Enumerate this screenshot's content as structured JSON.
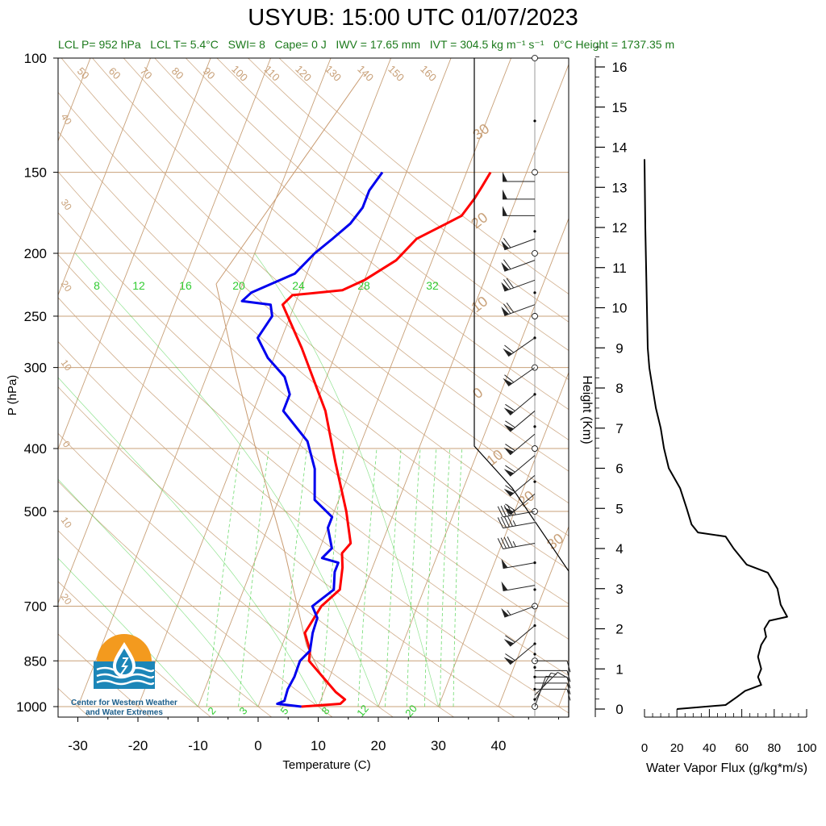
{
  "title": "USYUB: 15:00 UTC 01/07/2023",
  "info": {
    "lcl_p": "LCL P= 952 hPa",
    "lcl_t": "LCL T= 5.4°C",
    "swi": "SWI= 8",
    "cape": "Cape= 0 J",
    "iwv": "IWV = 17.65 mm",
    "ivt": "IVT = 304.5 kg m⁻¹ s⁻¹",
    "zero_height": "0°C Height = 1737.35 m"
  },
  "colors": {
    "temperature": "#ff0000",
    "dewpoint": "#0000ee",
    "isotherm": "#c8a078",
    "mixing_ratio": "#33cc33",
    "flux": "#000000",
    "logo_orange": "#f39a1e",
    "logo_blue": "#1c86b8"
  },
  "logo": {
    "line1": "Center for Western Weather",
    "line2": "and Water Extremes"
  },
  "chart_data": [
    {
      "type": "line",
      "title": "USYUB: 15:00 UTC 01/07/2023",
      "xlabel": "Temperature (C)",
      "ylabel": "P (hPa)",
      "xlim": [
        -34,
        52
      ],
      "ylim": [
        1000,
        100
      ],
      "y_scale": "log",
      "x_ticks": [
        "-30",
        "-20",
        "-10",
        "0",
        "10",
        "20",
        "30",
        "40"
      ],
      "y_ticks": [
        "100",
        "150",
        "200",
        "250",
        "300",
        "400",
        "500",
        "700",
        "850",
        "1000"
      ],
      "series": [
        {
          "role": "temperature",
          "points": [
            [
              7.2,
              1000
            ],
            [
              13.5,
              990
            ],
            [
              14,
              975
            ],
            [
              12,
              950
            ],
            [
              5.5,
              850
            ],
            [
              5,
              820
            ],
            [
              3,
              770
            ],
            [
              4,
              700
            ],
            [
              6,
              660
            ],
            [
              5,
              610
            ],
            [
              4,
              580
            ],
            [
              4.8,
              560
            ],
            [
              2,
              500
            ],
            [
              -3,
              420
            ],
            [
              -8,
              350
            ],
            [
              -16,
              280
            ],
            [
              -22,
              240
            ],
            [
              -21,
              232
            ],
            [
              -13,
              228
            ],
            [
              -10,
              220
            ],
            [
              -6,
              205
            ],
            [
              -4,
              190
            ],
            [
              0,
              180
            ],
            [
              2,
              175
            ],
            [
              3,
              165
            ],
            [
              3.5,
              158
            ],
            [
              4,
              150
            ]
          ]
        },
        {
          "role": "dewpoint",
          "points": [
            [
              7.2,
              1000
            ],
            [
              3,
              990
            ],
            [
              4,
              980
            ],
            [
              3.8,
              940
            ],
            [
              4.1,
              900
            ],
            [
              4,
              850
            ],
            [
              5,
              820
            ],
            [
              4.3,
              770
            ],
            [
              4.1,
              730
            ],
            [
              2.5,
              700
            ],
            [
              5,
              660
            ],
            [
              4,
              620
            ],
            [
              4,
              600
            ],
            [
              1,
              590
            ],
            [
              2,
              570
            ],
            [
              0,
              530
            ],
            [
              0,
              510
            ],
            [
              -4,
              480
            ],
            [
              -6,
              430
            ],
            [
              -9,
              390
            ],
            [
              -15,
              350
            ],
            [
              -15,
              330
            ],
            [
              -17,
              310
            ],
            [
              -21,
              290
            ],
            [
              -24,
              270
            ],
            [
              -23,
              250
            ],
            [
              -24,
              240
            ],
            [
              -29,
              237
            ],
            [
              -28,
              230
            ],
            [
              -22,
              215
            ],
            [
              -20,
              200
            ],
            [
              -18,
              190
            ],
            [
              -16,
              180
            ],
            [
              -15,
              170
            ],
            [
              -15,
              160
            ],
            [
              -14,
              150
            ]
          ]
        }
      ],
      "dry_adiabat_labels": [
        "50",
        "60",
        "70",
        "80",
        "90",
        "100",
        "110",
        "120",
        "130",
        "140",
        "150",
        "160"
      ],
      "isotherm_labels": [
        "40",
        "30",
        "20",
        "10",
        "0",
        "10",
        "20"
      ],
      "right_isotherm_labels": [
        "30",
        "20",
        "10",
        "0",
        "10",
        "20",
        "30"
      ],
      "mixing_ratio_labels_top": [
        "8",
        "12",
        "16",
        "20",
        "24",
        "28",
        "32"
      ],
      "mixing_ratio_labels_bottom": [
        "2",
        "3",
        "5",
        "8",
        "12",
        "20"
      ]
    },
    {
      "type": "line",
      "title": "",
      "xlabel": "Water Vapor Flux (g/kg*m/s)",
      "ylabel": "Height (Km)",
      "xlim": [
        0,
        100
      ],
      "ylim": [
        0,
        16.5
      ],
      "x_ticks": [
        "0",
        "20",
        "40",
        "60",
        "80",
        "100"
      ],
      "y_ticks": [
        "0",
        "1",
        "2",
        "3",
        "4",
        "5",
        "6",
        "7",
        "8",
        "9",
        "10",
        "11",
        "12",
        "13",
        "14",
        "15",
        "16"
      ],
      "series": [
        {
          "role": "flux",
          "points": [
            [
              20,
              0
            ],
            [
              50,
              0.1
            ],
            [
              57,
              0.3
            ],
            [
              62,
              0.45
            ],
            [
              72,
              0.6
            ],
            [
              70,
              0.8
            ],
            [
              72,
              1.0
            ],
            [
              70,
              1.3
            ],
            [
              72,
              1.6
            ],
            [
              75,
              1.8
            ],
            [
              74,
              2.0
            ],
            [
              77,
              2.2
            ],
            [
              88,
              2.3
            ],
            [
              84,
              2.6
            ],
            [
              82,
              3.0
            ],
            [
              76,
              3.4
            ],
            [
              63,
              3.6
            ],
            [
              55,
              4.0
            ],
            [
              50,
              4.3
            ],
            [
              33,
              4.4
            ],
            [
              29,
              4.6
            ],
            [
              26,
              5.0
            ],
            [
              22,
              5.5
            ],
            [
              15,
              6.0
            ],
            [
              12,
              6.5
            ],
            [
              10,
              7.0
            ],
            [
              7,
              7.5
            ],
            [
              5,
              8.0
            ],
            [
              3,
              8.5
            ],
            [
              2,
              9.0
            ],
            [
              1.5,
              10.0
            ],
            [
              1,
              11.0
            ],
            [
              0.5,
              12.0
            ],
            [
              0,
              13.7
            ]
          ]
        }
      ]
    }
  ],
  "wind_barbs": [
    {
      "p": 1000,
      "dir": 20,
      "speed": 5
    },
    {
      "p": 980,
      "dir": 30,
      "speed": 5
    },
    {
      "p": 960,
      "dir": 45,
      "speed": 10
    },
    {
      "p": 940,
      "dir": 90,
      "speed": 10
    },
    {
      "p": 920,
      "dir": 90,
      "speed": 10
    },
    {
      "p": 900,
      "dir": 90,
      "speed": 10
    },
    {
      "p": 880,
      "dir": 90,
      "speed": 10
    },
    {
      "p": 850,
      "dir": 90,
      "speed": 10
    },
    {
      "p": 800,
      "dir": 230,
      "speed": 60
    },
    {
      "p": 750,
      "dir": 230,
      "speed": 60
    },
    {
      "p": 700,
      "dir": 250,
      "speed": 55
    },
    {
      "p": 650,
      "dir": 260,
      "speed": 50
    },
    {
      "p": 600,
      "dir": 260,
      "speed": 50
    },
    {
      "p": 560,
      "dir": 260,
      "speed": 45
    },
    {
      "p": 520,
      "dir": 260,
      "speed": 45
    },
    {
      "p": 500,
      "dir": 260,
      "speed": 45
    },
    {
      "p": 470,
      "dir": 230,
      "speed": 60
    },
    {
      "p": 440,
      "dir": 230,
      "speed": 60
    },
    {
      "p": 410,
      "dir": 230,
      "speed": 60
    },
    {
      "p": 380,
      "dir": 230,
      "speed": 60
    },
    {
      "p": 350,
      "dir": 230,
      "speed": 60
    },
    {
      "p": 330,
      "dir": 230,
      "speed": 60
    },
    {
      "p": 300,
      "dir": 235,
      "speed": 60
    },
    {
      "p": 270,
      "dir": 235,
      "speed": 60
    },
    {
      "p": 240,
      "dir": 250,
      "speed": 70
    },
    {
      "p": 220,
      "dir": 250,
      "speed": 70
    },
    {
      "p": 205,
      "dir": 250,
      "speed": 60
    },
    {
      "p": 190,
      "dir": 250,
      "speed": 60
    },
    {
      "p": 175,
      "dir": 270,
      "speed": 50
    },
    {
      "p": 165,
      "dir": 270,
      "speed": 50
    },
    {
      "p": 155,
      "dir": 270,
      "speed": 50
    }
  ]
}
